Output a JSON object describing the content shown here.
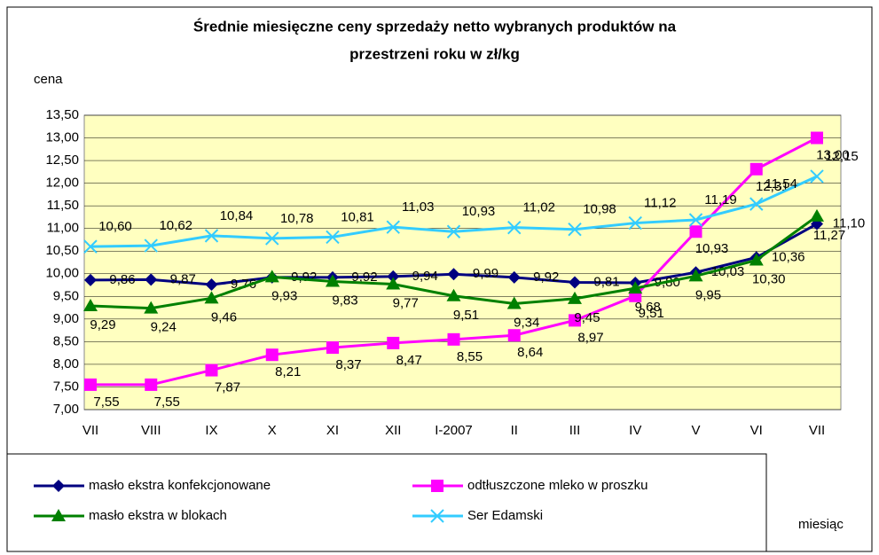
{
  "chart_data": {
    "type": "line",
    "title": "Średnie miesięczne ceny sprzedaży netto  wybranych produktów na",
    "subtitle": "przestrzeni roku w zł/kg",
    "y_label": "cena",
    "x_label": "miesiąc",
    "categories": [
      "VII",
      "VIII",
      "IX",
      "X",
      "XI",
      "XII",
      "I-2007",
      "II",
      "III",
      "IV",
      "V",
      "VI",
      "VII"
    ],
    "ylim": [
      7.0,
      13.5
    ],
    "yticks": [
      {
        "value": 7.0,
        "label": "7,00"
      },
      {
        "value": 7.5,
        "label": "7,50"
      },
      {
        "value": 8.0,
        "label": "8,00"
      },
      {
        "value": 8.5,
        "label": "8,50"
      },
      {
        "value": 9.0,
        "label": "9,00"
      },
      {
        "value": 9.5,
        "label": "9,50"
      },
      {
        "value": 10.0,
        "label": "10,00"
      },
      {
        "value": 10.5,
        "label": "10,50"
      },
      {
        "value": 11.0,
        "label": "11,00"
      },
      {
        "value": 11.5,
        "label": "11,50"
      },
      {
        "value": 12.0,
        "label": "12,00"
      },
      {
        "value": 12.5,
        "label": "12,50"
      },
      {
        "value": 13.0,
        "label": "13,00"
      },
      {
        "value": 13.5,
        "label": "13,50"
      }
    ],
    "grid": true,
    "series": [
      {
        "name": "masło ekstra konfekcjonowane",
        "color": "#000080",
        "marker": "diamond",
        "values": [
          9.86,
          9.87,
          9.76,
          9.92,
          9.92,
          9.94,
          9.99,
          9.92,
          9.81,
          9.8,
          10.03,
          10.36,
          11.1
        ],
        "value_labels": [
          "9,86",
          "9,87",
          "9,76",
          "9,92",
          "9,92",
          "9,94",
          "9,99",
          "9,92",
          "9,81",
          "9,80",
          "10,03",
          "10,36",
          "11,10"
        ]
      },
      {
        "name": "odtłuszczone mleko w  proszku",
        "color": "#FF00FF",
        "marker": "square",
        "values": [
          7.55,
          7.55,
          7.87,
          8.21,
          8.37,
          8.47,
          8.55,
          8.64,
          8.97,
          9.51,
          10.93,
          12.31,
          13.0
        ],
        "value_labels": [
          "7,55",
          "7,55",
          "7,87",
          "8,21",
          "8,37",
          "8,47",
          "8,55",
          "8,64",
          "8,97",
          "9,51",
          "10,93",
          "12,31",
          "13,00"
        ]
      },
      {
        "name": "masło ekstra w  blokach",
        "color": "#008000",
        "marker": "triangle",
        "values": [
          9.29,
          9.24,
          9.46,
          9.93,
          9.83,
          9.77,
          9.51,
          9.34,
          9.45,
          9.68,
          9.95,
          10.3,
          11.27
        ],
        "value_labels": [
          "9,29",
          "9,24",
          "9,46",
          "9,93",
          "9,83",
          "9,77",
          "9,51",
          "9,34",
          "9,45",
          "9,68",
          "9,95",
          "10,30",
          "11,27"
        ]
      },
      {
        "name": "Ser Edamski",
        "color": "#33CCFF",
        "marker": "cross",
        "values": [
          10.6,
          10.62,
          10.84,
          10.78,
          10.81,
          11.03,
          10.93,
          11.02,
          10.98,
          11.12,
          11.19,
          11.54,
          12.15
        ],
        "value_labels": [
          "10,60",
          "10,62",
          "10,84",
          "10,78",
          "10,81",
          "11,03",
          "10,93",
          "11,02",
          "10,98",
          "11,12",
          "11,19",
          "11,54",
          "12,15"
        ]
      }
    ]
  }
}
